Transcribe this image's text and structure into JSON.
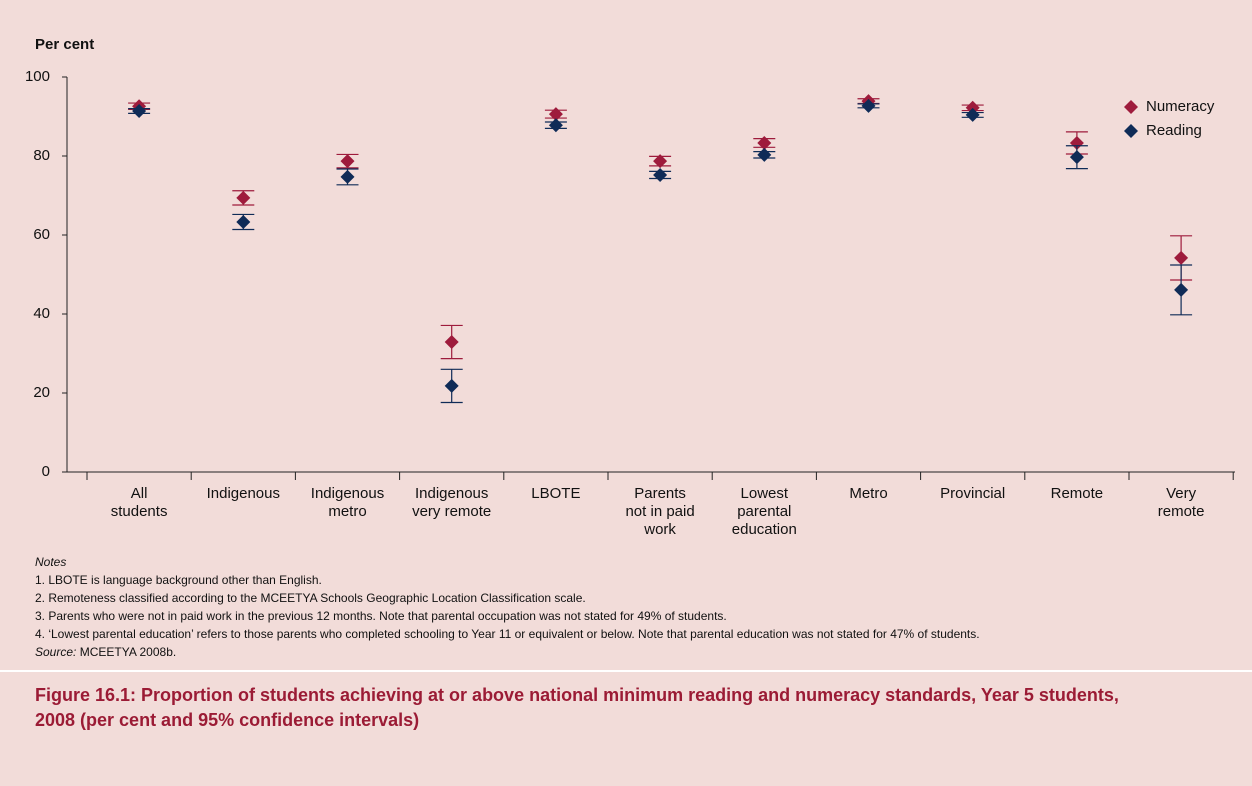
{
  "chart_data": {
    "type": "errorbar",
    "ylabel": "Per cent",
    "categories": [
      "All\nstudents",
      "Indigenous",
      "Indigenous\nmetro",
      "Indigenous\nvery remote",
      "LBOTE",
      "Parents\nnot in paid\nwork",
      "Lowest\nparental\neducation",
      "Metro",
      "Provincial",
      "Remote",
      "Very\nremote"
    ],
    "series": [
      {
        "name": "Numeracy",
        "color": "#9e1b3c",
        "values": [
          92.6,
          69.4,
          78.7,
          32.9,
          90.6,
          78.7,
          83.3,
          93.9,
          92.2,
          83.3,
          54.2
        ],
        "errors": [
          0.8,
          1.8,
          1.7,
          4.2,
          1.0,
          1.2,
          1.1,
          0.6,
          0.7,
          2.8,
          5.6
        ]
      },
      {
        "name": "Reading",
        "color": "#0f2b57",
        "values": [
          91.4,
          63.3,
          74.7,
          21.8,
          87.8,
          75.2,
          80.3,
          92.7,
          90.4,
          79.7,
          46.1
        ],
        "errors": [
          0.6,
          1.9,
          2.0,
          4.2,
          0.8,
          0.9,
          0.8,
          0.5,
          0.6,
          2.9,
          6.3
        ]
      }
    ],
    "ylim": [
      0,
      100
    ],
    "yticks": [
      0,
      20,
      40,
      60,
      80,
      100
    ],
    "legend": "upper right"
  },
  "notes": {
    "heading": "Notes",
    "items": [
      "1.  LBOTE is language background other than English.",
      "2.  Remoteness classified according to the MCEETYA Schools Geographic Location Classification scale.",
      "3.  Parents who were not in paid work in the previous 12 months. Note that parental occupation was not stated for 49% of students.",
      "4.  ‘Lowest parental education’ refers to those parents who completed schooling to Year 11 or equivalent or below. Note that parental education was not stated for 47% of students."
    ],
    "source_label": "Source:",
    "source_text": "MCEETYA 2008b."
  },
  "caption": "Figure 16.1: Proportion of students achieving at or above national minimum reading and numeracy standards, Year 5 students, 2008 (per cent and 95% confidence intervals)"
}
